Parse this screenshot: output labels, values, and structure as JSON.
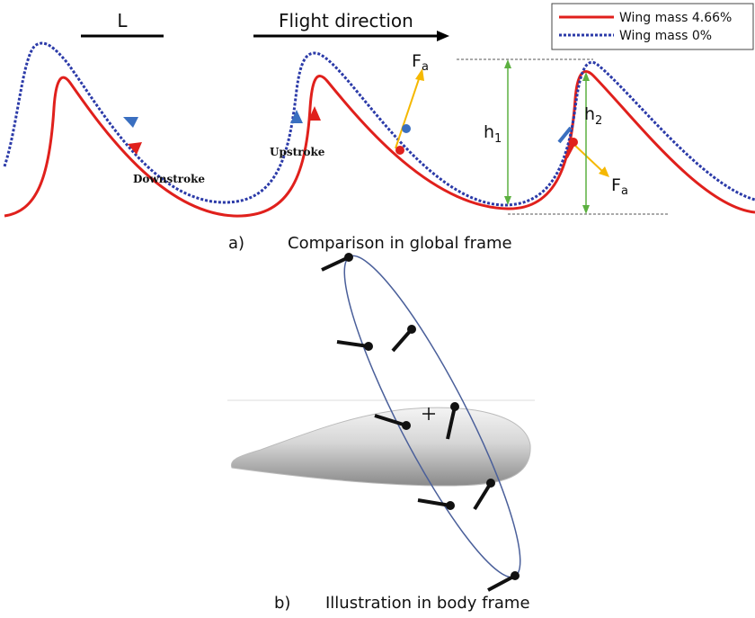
{
  "panel_a": {
    "scale_label": "L",
    "direction_label": "Flight direction",
    "legend": [
      "Wing mass 4.66%",
      "Wing mass 0%"
    ],
    "upstroke": "Upstroke",
    "downstroke": "Downstroke",
    "force_1": {
      "base": "F",
      "sub": "a"
    },
    "force_2": {
      "base": "F",
      "sub": "a"
    },
    "height_1": {
      "base": "h",
      "sub": "1"
    },
    "height_2": {
      "base": "h",
      "sub": "2"
    },
    "caption": {
      "letter": "a)",
      "text": "Comparison in global frame"
    }
  },
  "panel_b": {
    "caption": {
      "letter": "b)",
      "text": "Illustration in body frame"
    }
  }
}
